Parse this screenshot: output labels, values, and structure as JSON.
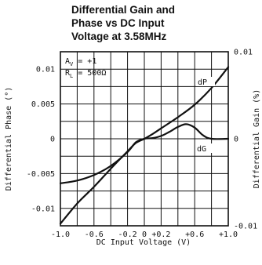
{
  "chart_data": {
    "type": "line",
    "title": [
      "Differential Gain and",
      "Phase vs DC Input",
      "Voltage at 3.58MHz"
    ],
    "xlabel": "DC Input Voltage (V)",
    "ylabel_left": "Differential Phase (°)",
    "ylabel_right": "Differential Gain (%)",
    "xlim": [
      -1.0,
      1.0
    ],
    "ylim_left": [
      -0.0125,
      0.0125
    ],
    "ylim_right": [
      -0.01,
      0.01
    ],
    "x_ticks": [
      {
        "value": -1.0,
        "label": "-1.0"
      },
      {
        "value": -0.6,
        "label": "-0.6"
      },
      {
        "value": -0.2,
        "label": "-0.2"
      },
      {
        "value": 0.0,
        "label": "0"
      },
      {
        "value": 0.2,
        "label": "+0.2"
      },
      {
        "value": 0.6,
        "label": "+0.6"
      },
      {
        "value": 1.0,
        "label": "+1.0"
      }
    ],
    "x_gridlines": [
      -1.0,
      -0.8,
      -0.6,
      -0.4,
      -0.2,
      0.0,
      0.2,
      0.4,
      0.6,
      0.8,
      1.0
    ],
    "y_ticks_left": [
      {
        "value": 0.01,
        "label": "0.01"
      },
      {
        "value": 0.005,
        "label": "0.005"
      },
      {
        "value": 0.0,
        "label": "0"
      },
      {
        "value": -0.005,
        "label": "-0.005"
      },
      {
        "value": -0.01,
        "label": "-0.01"
      }
    ],
    "y_gridlines_left": [
      -0.0125,
      -0.01,
      -0.0075,
      -0.005,
      -0.0025,
      0.0,
      0.0025,
      0.005,
      0.0075,
      0.01,
      0.0125
    ],
    "y_ticks_right": [
      {
        "value": 0.01,
        "label": "0.01"
      },
      {
        "value": 0.0,
        "label": "0"
      },
      {
        "value": -0.01,
        "label": "-0.01"
      }
    ],
    "conditions": {
      "line1": "A",
      "line1_sub": "V",
      "line1_rest": " = +1",
      "line2": "R",
      "line2_sub": "L",
      "line2_rest": " = 500Ω"
    },
    "series": [
      {
        "name": "dP",
        "axis": "left",
        "x": [
          -1.0,
          -0.8,
          -0.6,
          -0.4,
          -0.2,
          -0.1,
          0.0,
          0.1,
          0.2,
          0.4,
          0.6,
          0.8,
          1.0
        ],
        "y": [
          -0.0122,
          -0.0093,
          -0.0069,
          -0.0043,
          -0.0018,
          -0.0006,
          0.0,
          0.0007,
          0.0015,
          0.0031,
          0.0049,
          0.0073,
          0.0103
        ]
      },
      {
        "name": "dG",
        "axis": "left",
        "x": [
          -1.0,
          -0.8,
          -0.6,
          -0.4,
          -0.2,
          -0.1,
          0.0,
          0.1,
          0.2,
          0.3,
          0.4,
          0.5,
          0.6,
          0.7,
          0.8,
          1.0
        ],
        "y": [
          -0.0064,
          -0.006,
          -0.0052,
          -0.0039,
          -0.0019,
          -0.0005,
          0.0,
          0.0001,
          0.0004,
          0.001,
          0.0017,
          0.0021,
          0.0016,
          0.0005,
          0.0,
          0.0
        ]
      }
    ]
  }
}
